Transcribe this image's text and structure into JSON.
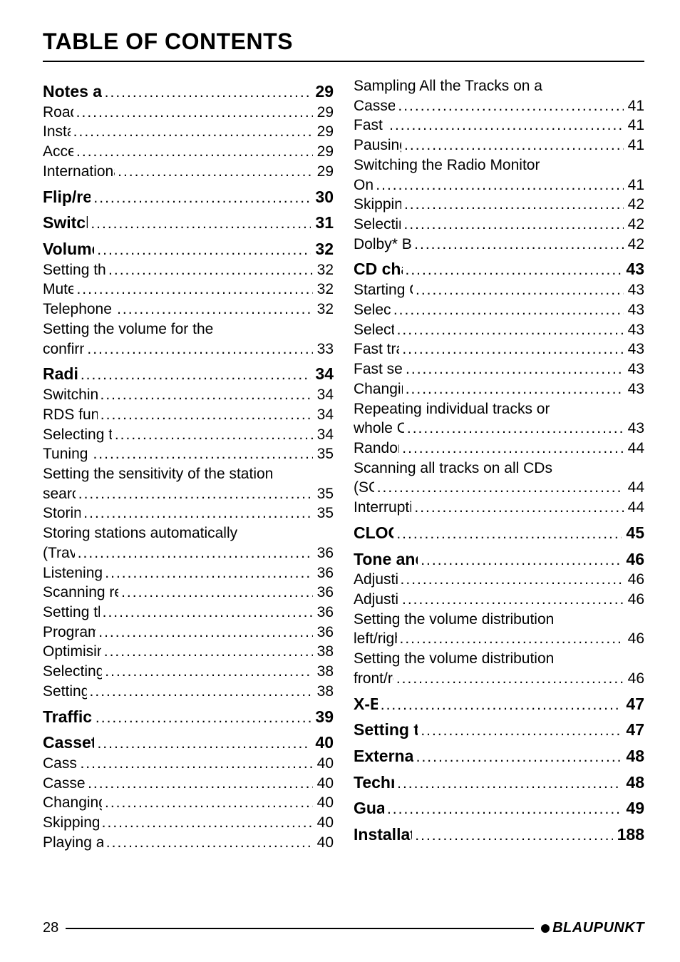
{
  "title": "TABLE OF CONTENTS",
  "footer": {
    "page_number": "28",
    "brand": "BLAUPUNKT"
  },
  "left_col": [
    {
      "type": "section",
      "label": "Notes and accessories",
      "page": "29"
    },
    {
      "type": "item",
      "label": "Road safety",
      "page": "29"
    },
    {
      "type": "item",
      "label": "Installation",
      "page": "29"
    },
    {
      "type": "item",
      "label": "Accessories",
      "page": "29"
    },
    {
      "type": "item",
      "label": "International telephone information",
      "page": "29"
    },
    {
      "type": "section",
      "label": "Flip/release panel",
      "page": "30"
    },
    {
      "type": "section",
      "label": "Switching on/off",
      "page": "31"
    },
    {
      "type": "section",
      "label": "Volume adjustment",
      "page": "32"
    },
    {
      "type": "item",
      "label": "Setting the switch-on volume",
      "page": "32"
    },
    {
      "type": "item",
      "label": "Mute setting",
      "page": "32"
    },
    {
      "type": "item",
      "label": "Telephone Audio/Navigation Audio",
      "page": "32"
    },
    {
      "type": "cont",
      "label": "Setting the volume for the"
    },
    {
      "type": "item",
      "label": "confirmation tone",
      "page": "33"
    },
    {
      "type": "section",
      "label": "Radio mode",
      "page": "34"
    },
    {
      "type": "item",
      "label": "Switching to radio mode",
      "page": "34"
    },
    {
      "type": "item",
      "label": "RDS function (AF, REG)",
      "page": "34"
    },
    {
      "type": "item",
      "label": "Selecting the waveband/memory",
      "page": "34"
    },
    {
      "type": "item",
      "label": "Tuning into a station",
      "page": "35"
    },
    {
      "type": "cont",
      "label": "Setting the sensitivity of the station"
    },
    {
      "type": "item",
      "label": "search mode",
      "page": "35"
    },
    {
      "type": "item",
      "label": "Storing stations",
      "page": "35"
    },
    {
      "type": "cont",
      "label": "Storing stations automatically"
    },
    {
      "type": "item",
      "label": "(Travelstore)",
      "page": "36"
    },
    {
      "type": "item",
      "label": "Listening to preset stations",
      "page": "36"
    },
    {
      "type": "item",
      "label": "Scanning receivable stations (SCAN)",
      "page": "36"
    },
    {
      "type": "item",
      "label": "Setting the scanning time",
      "page": "36"
    },
    {
      "type": "item",
      "label": "Programme type (PTY)",
      "page": "36"
    },
    {
      "type": "item",
      "label": "Optimising radio reception",
      "page": "38"
    },
    {
      "type": "item",
      "label": "Selecting radio text display",
      "page": "38"
    },
    {
      "type": "item",
      "label": "Setting the display",
      "page": "38"
    },
    {
      "type": "section",
      "label": "Traffic information",
      "page": "39"
    },
    {
      "type": "section",
      "label": "Cassette Operation",
      "page": "40"
    },
    {
      "type": "item",
      "label": "Cassette Play",
      "page": "40"
    },
    {
      "type": "item",
      "label": "Cassette Ejection",
      "page": "40"
    },
    {
      "type": "item",
      "label": "Changing Direction of Play",
      "page": "40"
    },
    {
      "type": "item",
      "label": "Skipping Tracks (S-CPS)",
      "page": "40"
    },
    {
      "type": "item",
      "label": "Playing a Track Repeatedly",
      "page": "40"
    }
  ],
  "right_col": [
    {
      "type": "cont",
      "label": "Sampling All the Tracks on a"
    },
    {
      "type": "item",
      "label": "Cassette (SCAN)",
      "page": "41"
    },
    {
      "type": "item",
      "label": "Fast Winding",
      "page": "41"
    },
    {
      "type": "item",
      "label": "Pausing During Play",
      "page": "41"
    },
    {
      "type": "cont",
      "label": "Switching the Radio Monitor"
    },
    {
      "type": "item",
      "label": "On / off",
      "page": "41"
    },
    {
      "type": "item",
      "label": "Skipping Blank Tape",
      "page": "42"
    },
    {
      "type": "item",
      "label": "Selecting Tape Type",
      "page": "42"
    },
    {
      "type": "item",
      "label": "Dolby* B Noise Reduction",
      "page": "42"
    },
    {
      "type": "section",
      "label": "CD changer mode",
      "page": "43"
    },
    {
      "type": "item",
      "label": "Starting CD changer mode",
      "page": "43"
    },
    {
      "type": "item",
      "label": "Selecting a CD",
      "page": "43"
    },
    {
      "type": "item",
      "label": "Selecting a track",
      "page": "43"
    },
    {
      "type": "item",
      "label": "Fast track selection",
      "page": "43"
    },
    {
      "type": "item",
      "label": "Fast search (audible)",
      "page": "43"
    },
    {
      "type": "item",
      "label": "Changing the display",
      "page": "43"
    },
    {
      "type": "cont",
      "label": "Repeating individual tracks or"
    },
    {
      "type": "item",
      "label": "whole CDs (REPEAT)",
      "page": "43"
    },
    {
      "type": "item",
      "label": "Random play (MIX)",
      "page": "44"
    },
    {
      "type": "cont",
      "label": "Scanning all tracks on all CDs"
    },
    {
      "type": "item",
      "label": "(SCAN)",
      "page": "44"
    },
    {
      "type": "item",
      "label": "Interrupting Play (PAUSE)",
      "page": "44"
    },
    {
      "type": "section",
      "label": "CLOCK - Time",
      "page": "45"
    },
    {
      "type": "section",
      "label": "Tone and volume balance",
      "page": "46"
    },
    {
      "type": "item",
      "label": "Adjusting the bass",
      "page": "46"
    },
    {
      "type": "item",
      "label": "Adjusting the treble",
      "page": "46"
    },
    {
      "type": "cont",
      "label": "Setting the volume distribution"
    },
    {
      "type": "item",
      "label": "left/right (balance)",
      "page": "46"
    },
    {
      "type": "cont",
      "label": "Setting the volume distribution"
    },
    {
      "type": "item",
      "label": "front/rear (fader)",
      "page": "46"
    },
    {
      "type": "section",
      "label": "X-BASS",
      "page": "47"
    },
    {
      "type": "section",
      "label": "Setting the level indicator",
      "page": "47"
    },
    {
      "type": "section",
      "label": "External audio sources",
      "page": "48"
    },
    {
      "type": "section",
      "label": "Technical data",
      "page": "48"
    },
    {
      "type": "section",
      "label": "Guarantee",
      "page": "49"
    },
    {
      "type": "section",
      "label": "Installation instructions",
      "page": "188"
    }
  ]
}
